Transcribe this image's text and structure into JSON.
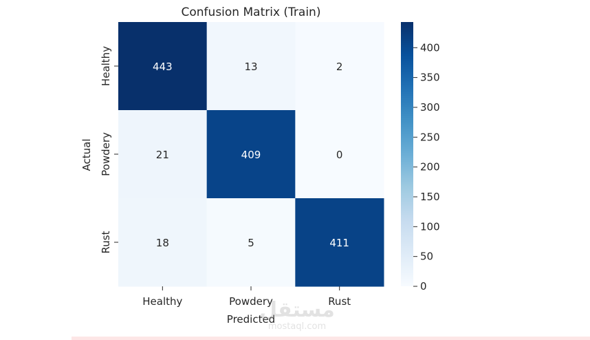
{
  "chart_data": {
    "type": "heatmap",
    "title": "Confusion Matrix (Train)",
    "xlabel": "Predicted",
    "ylabel": "Actual",
    "x_categories": [
      "Healthy",
      "Powdery",
      "Rust"
    ],
    "y_categories": [
      "Healthy",
      "Powdery",
      "Rust"
    ],
    "values": [
      [
        443,
        13,
        2
      ],
      [
        21,
        409,
        0
      ],
      [
        18,
        5,
        411
      ]
    ],
    "colormap": "Blues",
    "color_range": [
      0,
      443
    ],
    "colorbar_ticks": [
      0,
      50,
      100,
      150,
      200,
      250,
      300,
      350,
      400
    ],
    "colorbar_tick_labels": [
      "0",
      "50",
      "100",
      "150",
      "200",
      "250",
      "300",
      "350",
      "400"
    ],
    "grid": false
  },
  "watermark": {
    "text": "مستقل",
    "subtext": "mostaql.com"
  },
  "colors": {
    "background": "#ffffff",
    "bottom_strip": "#fde6e6",
    "text": "#262626",
    "cell_text_dark": "#262626",
    "cell_text_light": "#ffffff"
  }
}
